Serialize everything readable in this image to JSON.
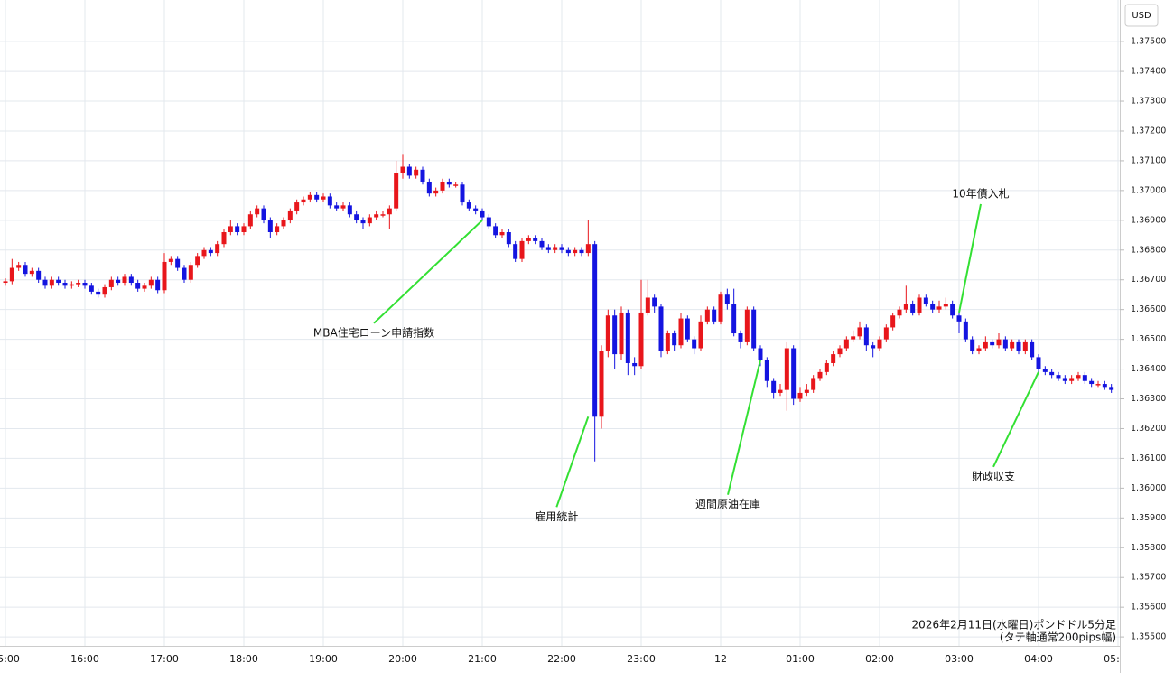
{
  "chart_data": {
    "type": "candlestick",
    "currency": "USD",
    "caption": [
      "2026年2月11日(水曜日)ポンドドル5分足",
      "(タテ軸通常200pips幅)"
    ],
    "up_color": "#e8161b",
    "down_color": "#1414e0",
    "grid": true,
    "ylim": [
      1.3547,
      1.3764
    ],
    "yticks": [
      {
        "value": 1.355,
        "label": "1.35500"
      },
      {
        "value": 1.356,
        "label": "1.35600"
      },
      {
        "value": 1.357,
        "label": "1.35700"
      },
      {
        "value": 1.358,
        "label": "1.35800"
      },
      {
        "value": 1.359,
        "label": "1.35900"
      },
      {
        "value": 1.36,
        "label": "1.36000"
      },
      {
        "value": 1.361,
        "label": "1.36100"
      },
      {
        "value": 1.362,
        "label": "1.36200"
      },
      {
        "value": 1.363,
        "label": "1.36300"
      },
      {
        "value": 1.364,
        "label": "1.36400"
      },
      {
        "value": 1.365,
        "label": "1.36500"
      },
      {
        "value": 1.366,
        "label": "1.36600"
      },
      {
        "value": 1.367,
        "label": "1.36700"
      },
      {
        "value": 1.368,
        "label": "1.36800"
      },
      {
        "value": 1.369,
        "label": "1.36900"
      },
      {
        "value": 1.37,
        "label": "1.37000"
      },
      {
        "value": 1.371,
        "label": "1.37100"
      },
      {
        "value": 1.372,
        "label": "1.37200"
      },
      {
        "value": 1.373,
        "label": "1.37300"
      },
      {
        "value": 1.374,
        "label": "1.37400"
      },
      {
        "value": 1.375,
        "label": "1.37500"
      }
    ],
    "xticks": [
      {
        "value": "15:00",
        "label": "15:00"
      },
      {
        "value": "16:00",
        "label": "16:00"
      },
      {
        "value": "17:00",
        "label": "17:00"
      },
      {
        "value": "18:00",
        "label": "18:00"
      },
      {
        "value": "19:00",
        "label": "19:00"
      },
      {
        "value": "20:00",
        "label": "20:00"
      },
      {
        "value": "21:00",
        "label": "21:00"
      },
      {
        "value": "22:00",
        "label": "22:00"
      },
      {
        "value": "23:00",
        "label": "23:00"
      },
      {
        "value": "00:00",
        "label": "12"
      },
      {
        "value": "01:00",
        "label": "01:00"
      },
      {
        "value": "02:00",
        "label": "02:00"
      },
      {
        "value": "03:00",
        "label": "03:00"
      },
      {
        "value": "04:00",
        "label": "04:00"
      },
      {
        "value": "05:00",
        "label": "05:00"
      }
    ],
    "annotations": [
      {
        "text": "MBA住宅ローン申請指数",
        "x": "21:00",
        "y": 1.369
      },
      {
        "text": "雇用統計",
        "x": "22:20",
        "y": 1.3624
      },
      {
        "text": "週間原油在庫",
        "x": "00:30",
        "y": 1.3643
      },
      {
        "text": "10年債入札",
        "x": "03:00",
        "y": 1.3659
      },
      {
        "text": "財政収支",
        "x": "04:00",
        "y": 1.3639
      }
    ],
    "x": [
      "15:00",
      "15:05",
      "15:10",
      "15:15",
      "15:20",
      "15:25",
      "15:30",
      "15:35",
      "15:40",
      "15:45",
      "15:50",
      "15:55",
      "16:00",
      "16:05",
      "16:10",
      "16:15",
      "16:20",
      "16:25",
      "16:30",
      "16:35",
      "16:40",
      "16:45",
      "16:50",
      "16:55",
      "17:00",
      "17:05",
      "17:10",
      "17:15",
      "17:20",
      "17:25",
      "17:30",
      "17:35",
      "17:40",
      "17:45",
      "17:50",
      "17:55",
      "18:00",
      "18:05",
      "18:10",
      "18:15",
      "18:20",
      "18:25",
      "18:30",
      "18:35",
      "18:40",
      "18:45",
      "18:50",
      "18:55",
      "19:00",
      "19:05",
      "19:10",
      "19:15",
      "19:20",
      "19:25",
      "19:30",
      "19:35",
      "19:40",
      "19:45",
      "19:50",
      "19:55",
      "20:00",
      "20:05",
      "20:10",
      "20:15",
      "20:20",
      "20:25",
      "20:30",
      "20:35",
      "20:40",
      "20:45",
      "20:50",
      "20:55",
      "21:00",
      "21:05",
      "21:10",
      "21:15",
      "21:20",
      "21:25",
      "21:30",
      "21:35",
      "21:40",
      "21:45",
      "21:50",
      "21:55",
      "22:00",
      "22:05",
      "22:10",
      "22:15",
      "22:20",
      "22:25",
      "22:30",
      "22:35",
      "22:40",
      "22:45",
      "22:50",
      "22:55",
      "23:00",
      "23:05",
      "23:10",
      "23:15",
      "23:20",
      "23:25",
      "23:30",
      "23:35",
      "23:40",
      "23:45",
      "23:50",
      "23:55",
      "00:00",
      "00:05",
      "00:10",
      "00:15",
      "00:20",
      "00:25",
      "00:30",
      "00:35",
      "00:40",
      "00:45",
      "00:50",
      "00:55",
      "01:00",
      "01:05",
      "01:10",
      "01:15",
      "01:20",
      "01:25",
      "01:30",
      "01:35",
      "01:40",
      "01:45",
      "01:50",
      "01:55",
      "02:00",
      "02:05",
      "02:10",
      "02:15",
      "02:20",
      "02:25",
      "02:30",
      "02:35",
      "02:40",
      "02:45",
      "02:50",
      "02:55",
      "03:00",
      "03:05",
      "03:10",
      "03:15",
      "03:20",
      "03:25",
      "03:30",
      "03:35",
      "03:40",
      "03:45",
      "03:50",
      "03:55",
      "04:00",
      "04:05",
      "04:10",
      "04:15",
      "04:20",
      "04:25",
      "04:30",
      "04:35",
      "04:40",
      "04:45",
      "04:50",
      "04:55"
    ],
    "open": [
      1.3669,
      1.36695,
      1.3674,
      1.3675,
      1.3672,
      1.3673,
      1.367,
      1.3668,
      1.367,
      1.3669,
      1.3668,
      1.36685,
      1.3669,
      1.3668,
      1.3666,
      1.3665,
      1.36675,
      1.367,
      1.3669,
      1.3671,
      1.3669,
      1.3667,
      1.3668,
      1.367,
      1.36665,
      1.3676,
      1.3677,
      1.3674,
      1.367,
      1.3675,
      1.3678,
      1.368,
      1.3679,
      1.3682,
      1.3686,
      1.3688,
      1.3686,
      1.3688,
      1.3692,
      1.3694,
      1.369,
      1.3686,
      1.3688,
      1.369,
      1.3693,
      1.3696,
      1.3697,
      1.36985,
      1.3697,
      1.3698,
      1.3695,
      1.3694,
      1.3695,
      1.3692,
      1.369,
      1.3689,
      1.3691,
      1.3692,
      1.3692,
      1.3694,
      1.3706,
      1.3708,
      1.3705,
      1.3707,
      1.3703,
      1.3699,
      1.37,
      1.3703,
      1.3702,
      1.3702,
      1.3696,
      1.3694,
      1.3693,
      1.3691,
      1.3688,
      1.3685,
      1.3686,
      1.3682,
      1.3677,
      1.3683,
      1.3684,
      1.3683,
      1.3681,
      1.368,
      1.3681,
      1.368,
      1.3679,
      1.368,
      1.3679,
      1.3682,
      1.3624,
      1.3646,
      1.3658,
      1.3645,
      1.3659,
      1.3642,
      1.3641,
      1.3659,
      1.3664,
      1.3661,
      1.3646,
      1.3652,
      1.3648,
      1.3657,
      1.365,
      1.3647,
      1.3656,
      1.366,
      1.3656,
      1.3665,
      1.3662,
      1.3652,
      1.3649,
      1.366,
      1.3647,
      1.3643,
      1.3636,
      1.3632,
      1.3633,
      1.3647,
      1.363,
      1.3632,
      1.3633,
      1.3637,
      1.3639,
      1.3642,
      1.3645,
      1.3647,
      1.365,
      1.3651,
      1.3654,
      1.3648,
      1.3647,
      1.365,
      1.3654,
      1.3658,
      1.366,
      1.3662,
      1.3659,
      1.3664,
      1.3662,
      1.366,
      1.3661,
      1.3662,
      1.3658,
      1.3656,
      1.365,
      1.3646,
      1.3647,
      1.3649,
      1.3648,
      1.365,
      1.3647,
      1.3649,
      1.3646,
      1.3649,
      1.3644,
      1.364,
      1.3639,
      1.3638,
      1.3637,
      1.3636,
      1.3637,
      1.3638,
      1.3636,
      1.3635,
      1.3635,
      1.3634
    ],
    "high": [
      1.36705,
      1.3677,
      1.3676,
      1.3676,
      1.3674,
      1.3674,
      1.3671,
      1.3671,
      1.3671,
      1.367,
      1.36695,
      1.367,
      1.367,
      1.3669,
      1.3667,
      1.36685,
      1.3671,
      1.3671,
      1.3672,
      1.3672,
      1.367,
      1.3669,
      1.3671,
      1.3671,
      1.3679,
      1.3678,
      1.3678,
      1.3675,
      1.3676,
      1.3679,
      1.3681,
      1.3681,
      1.3683,
      1.3687,
      1.369,
      1.3689,
      1.3689,
      1.3693,
      1.3695,
      1.3695,
      1.3691,
      1.3689,
      1.3691,
      1.3694,
      1.3697,
      1.3698,
      1.36995,
      1.36995,
      1.3699,
      1.3699,
      1.3696,
      1.3696,
      1.3696,
      1.3693,
      1.3691,
      1.3692,
      1.3693,
      1.3693,
      1.3695,
      1.371,
      1.3712,
      1.3709,
      1.3708,
      1.3708,
      1.3704,
      1.3701,
      1.3704,
      1.3704,
      1.3703,
      1.3703,
      1.3697,
      1.3695,
      1.3694,
      1.3692,
      1.3689,
      1.3687,
      1.3687,
      1.3683,
      1.3684,
      1.3685,
      1.3685,
      1.3684,
      1.3682,
      1.3682,
      1.3682,
      1.3681,
      1.3681,
      1.3681,
      1.369,
      1.3683,
      1.3648,
      1.366,
      1.366,
      1.3661,
      1.366,
      1.3644,
      1.367,
      1.367,
      1.3665,
      1.3662,
      1.3653,
      1.3653,
      1.3659,
      1.3658,
      1.3651,
      1.3658,
      1.3661,
      1.3661,
      1.3666,
      1.3667,
      1.3667,
      1.3653,
      1.3661,
      1.3661,
      1.3648,
      1.3644,
      1.3637,
      1.3635,
      1.3649,
      1.3648,
      1.3634,
      1.3635,
      1.3638,
      1.364,
      1.3643,
      1.3646,
      1.3648,
      1.3651,
      1.3653,
      1.3656,
      1.3655,
      1.3649,
      1.3651,
      1.3655,
      1.3659,
      1.3661,
      1.3668,
      1.3663,
      1.3665,
      1.3665,
      1.3663,
      1.3663,
      1.3664,
      1.3663,
      1.3659,
      1.3657,
      1.3651,
      1.3648,
      1.3651,
      1.365,
      1.3652,
      1.3651,
      1.365,
      1.365,
      1.365,
      1.365,
      1.3645,
      1.3641,
      1.364,
      1.3639,
      1.3638,
      1.3638,
      1.3639,
      1.3639,
      1.3637,
      1.3636,
      1.3636,
      1.3635
    ],
    "low": [
      1.3668,
      1.36685,
      1.3673,
      1.3671,
      1.3671,
      1.3669,
      1.3667,
      1.3667,
      1.3668,
      1.3667,
      1.3667,
      1.36675,
      1.3667,
      1.3665,
      1.3664,
      1.3664,
      1.36665,
      1.3668,
      1.3668,
      1.3668,
      1.3666,
      1.3666,
      1.3667,
      1.36655,
      1.36655,
      1.3675,
      1.3673,
      1.3669,
      1.3669,
      1.3674,
      1.3677,
      1.3678,
      1.3678,
      1.3681,
      1.3685,
      1.3685,
      1.3685,
      1.3687,
      1.3691,
      1.3689,
      1.3684,
      1.3685,
      1.3687,
      1.3689,
      1.3692,
      1.3695,
      1.3696,
      1.3696,
      1.3696,
      1.3694,
      1.3693,
      1.3693,
      1.3691,
      1.3689,
      1.3687,
      1.3688,
      1.369,
      1.3691,
      1.3687,
      1.3693,
      1.3704,
      1.3704,
      1.3704,
      1.3702,
      1.3698,
      1.3698,
      1.3699,
      1.3701,
      1.3701,
      1.3695,
      1.3693,
      1.3692,
      1.369,
      1.3687,
      1.3684,
      1.3684,
      1.3681,
      1.3676,
      1.3676,
      1.3682,
      1.3682,
      1.368,
      1.3679,
      1.3679,
      1.3679,
      1.3678,
      1.3678,
      1.3678,
      1.3678,
      1.3609,
      1.362,
      1.3644,
      1.364,
      1.3643,
      1.3638,
      1.3638,
      1.364,
      1.3658,
      1.3659,
      1.3644,
      1.3645,
      1.3646,
      1.3647,
      1.3649,
      1.3645,
      1.3646,
      1.3655,
      1.3655,
      1.3655,
      1.366,
      1.3651,
      1.3647,
      1.3648,
      1.3646,
      1.3641,
      1.3634,
      1.363,
      1.3631,
      1.3626,
      1.3628,
      1.3629,
      1.3631,
      1.3632,
      1.3636,
      1.3638,
      1.3641,
      1.3644,
      1.3646,
      1.3649,
      1.365,
      1.3646,
      1.3644,
      1.3646,
      1.3649,
      1.3653,
      1.3657,
      1.3659,
      1.3658,
      1.3658,
      1.3661,
      1.3659,
      1.3659,
      1.366,
      1.3657,
      1.3652,
      1.3649,
      1.3645,
      1.3645,
      1.3646,
      1.3647,
      1.3647,
      1.3646,
      1.3646,
      1.3645,
      1.3645,
      1.3643,
      1.3639,
      1.3638,
      1.3637,
      1.3636,
      1.3635,
      1.3635,
      1.3636,
      1.3635,
      1.3634,
      1.3634,
      1.3633,
      1.3632
    ],
    "close": [
      1.36695,
      1.3674,
      1.3675,
      1.3672,
      1.3673,
      1.367,
      1.3668,
      1.367,
      1.3669,
      1.3668,
      1.36685,
      1.3669,
      1.3668,
      1.3666,
      1.3665,
      1.36675,
      1.367,
      1.3669,
      1.3671,
      1.3669,
      1.3667,
      1.3668,
      1.367,
      1.36665,
      1.3676,
      1.3677,
      1.3674,
      1.367,
      1.3675,
      1.3678,
      1.368,
      1.3679,
      1.3682,
      1.3686,
      1.3688,
      1.3686,
      1.3688,
      1.3692,
      1.3694,
      1.369,
      1.3686,
      1.3688,
      1.369,
      1.3693,
      1.3696,
      1.3697,
      1.36985,
      1.3697,
      1.3698,
      1.3695,
      1.3694,
      1.3695,
      1.3692,
      1.369,
      1.3689,
      1.3691,
      1.3692,
      1.3692,
      1.3694,
      1.3706,
      1.3708,
      1.3705,
      1.3707,
      1.3703,
      1.3699,
      1.37,
      1.3703,
      1.3702,
      1.3702,
      1.3696,
      1.3694,
      1.3693,
      1.3691,
      1.3688,
      1.3685,
      1.3686,
      1.3682,
      1.3677,
      1.3683,
      1.3684,
      1.3683,
      1.3681,
      1.368,
      1.3681,
      1.368,
      1.3679,
      1.368,
      1.3679,
      1.3682,
      1.3624,
      1.3646,
      1.3658,
      1.3645,
      1.3659,
      1.3642,
      1.3641,
      1.3659,
      1.3664,
      1.3661,
      1.3646,
      1.3652,
      1.3648,
      1.3657,
      1.365,
      1.3647,
      1.3656,
      1.366,
      1.3656,
      1.3665,
      1.3662,
      1.3652,
      1.3649,
      1.366,
      1.3647,
      1.3643,
      1.3636,
      1.3632,
      1.3633,
      1.3647,
      1.363,
      1.3632,
      1.3633,
      1.3637,
      1.3639,
      1.3642,
      1.3645,
      1.3647,
      1.365,
      1.3651,
      1.3654,
      1.3648,
      1.3647,
      1.365,
      1.3654,
      1.3658,
      1.366,
      1.3662,
      1.3659,
      1.3664,
      1.3662,
      1.366,
      1.3661,
      1.3662,
      1.3658,
      1.3656,
      1.365,
      1.3646,
      1.3647,
      1.3649,
      1.3648,
      1.365,
      1.3647,
      1.3649,
      1.3646,
      1.3649,
      1.3644,
      1.364,
      1.3639,
      1.3638,
      1.3637,
      1.3636,
      1.3637,
      1.3638,
      1.3636,
      1.3635,
      1.3635,
      1.3634,
      1.3633
    ]
  }
}
